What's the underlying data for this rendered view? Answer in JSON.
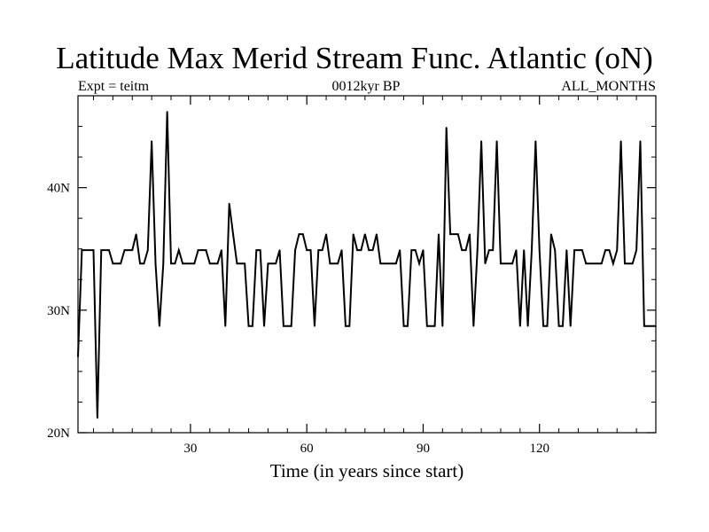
{
  "chart_data": {
    "type": "line",
    "title": "Latitude Max Merid Stream Func. Atlantic (oN)",
    "subtitle_left": "Expt = teitm",
    "subtitle_center": "0012kyr BP",
    "subtitle_right": "ALL_MONTHS",
    "xlabel": "Time (in years since start)",
    "ylabel": "",
    "xlim": [
      1,
      150
    ],
    "ylim": [
      20,
      47.5
    ],
    "x_ticks": [
      30,
      60,
      90,
      120
    ],
    "x_tick_labels": [
      "30",
      "60",
      "90",
      "120"
    ],
    "y_ticks": [
      20,
      30,
      40
    ],
    "y_tick_labels": [
      "20N",
      "30N",
      "40N"
    ],
    "y_minor_step": 2.5,
    "x_minor_step": 5,
    "grid": false,
    "line_color": "#000000",
    "series": [
      {
        "x": [
          1,
          2,
          3,
          4,
          5,
          6,
          7,
          8,
          9,
          10,
          11,
          12,
          13,
          14,
          15,
          16,
          17,
          18,
          19,
          20,
          21,
          22,
          23,
          24,
          25,
          26,
          27,
          28,
          29,
          30,
          31,
          32,
          33,
          34,
          35,
          36,
          37,
          38,
          39,
          40,
          41,
          42,
          43,
          44,
          45,
          46,
          47,
          48,
          49,
          50,
          51,
          52,
          53,
          54,
          55,
          56,
          57,
          58,
          59,
          60,
          61,
          62,
          63,
          64,
          65,
          66,
          67,
          68,
          69,
          70,
          71,
          72,
          73,
          74,
          75,
          76,
          77,
          78,
          79,
          80,
          81,
          82,
          83,
          84,
          85,
          86,
          87,
          88,
          89,
          90,
          91,
          92,
          93,
          94,
          95,
          96,
          97,
          98,
          99,
          100,
          101,
          102,
          103,
          104,
          105,
          106,
          107,
          108,
          109,
          110,
          111,
          112,
          113,
          114,
          115,
          116,
          117,
          118,
          119,
          120,
          121,
          122,
          123,
          124,
          125,
          126,
          127,
          128,
          129,
          130,
          131,
          132,
          133,
          134,
          135,
          136,
          137,
          138,
          139,
          140,
          141,
          142,
          143,
          144,
          145,
          146,
          147,
          148,
          149,
          150
        ],
        "values": [
          26.2,
          34.9,
          34.9,
          34.9,
          34.9,
          21.2,
          34.9,
          34.9,
          34.9,
          33.8,
          33.8,
          33.8,
          34.9,
          34.9,
          34.9,
          36.2,
          33.8,
          33.8,
          34.9,
          43.8,
          33.8,
          28.7,
          33.8,
          46.2,
          33.8,
          33.8,
          34.9,
          33.8,
          33.8,
          33.8,
          33.8,
          34.9,
          34.9,
          34.9,
          33.8,
          33.8,
          33.8,
          34.9,
          28.7,
          38.7,
          36.2,
          33.8,
          33.8,
          33.8,
          28.7,
          28.7,
          34.9,
          34.9,
          28.7,
          33.8,
          33.8,
          33.8,
          34.9,
          28.7,
          28.7,
          28.7,
          34.9,
          36.2,
          36.2,
          34.9,
          34.9,
          28.7,
          34.9,
          34.9,
          36.2,
          33.8,
          33.8,
          33.8,
          34.9,
          28.7,
          28.7,
          36.2,
          34.9,
          34.9,
          36.2,
          34.9,
          34.9,
          36.2,
          33.8,
          33.8,
          33.8,
          33.8,
          33.8,
          34.9,
          28.7,
          28.7,
          34.9,
          34.9,
          33.8,
          34.9,
          28.7,
          28.7,
          28.7,
          36.2,
          28.7,
          44.9,
          36.2,
          36.2,
          36.2,
          34.9,
          34.9,
          36.2,
          28.7,
          34.9,
          43.8,
          33.8,
          34.9,
          34.9,
          43.8,
          33.8,
          33.8,
          33.8,
          33.8,
          34.9,
          28.7,
          34.9,
          28.7,
          34.9,
          43.8,
          34.9,
          28.7,
          28.7,
          36.2,
          34.9,
          28.7,
          28.7,
          34.9,
          28.7,
          34.9,
          34.9,
          34.9,
          33.8,
          33.8,
          33.8,
          33.8,
          33.8,
          34.9,
          34.9,
          33.8,
          34.9,
          43.8,
          33.8,
          33.8,
          33.8,
          34.9,
          43.8,
          28.7,
          28.7,
          28.7,
          28.7
        ]
      }
    ]
  }
}
